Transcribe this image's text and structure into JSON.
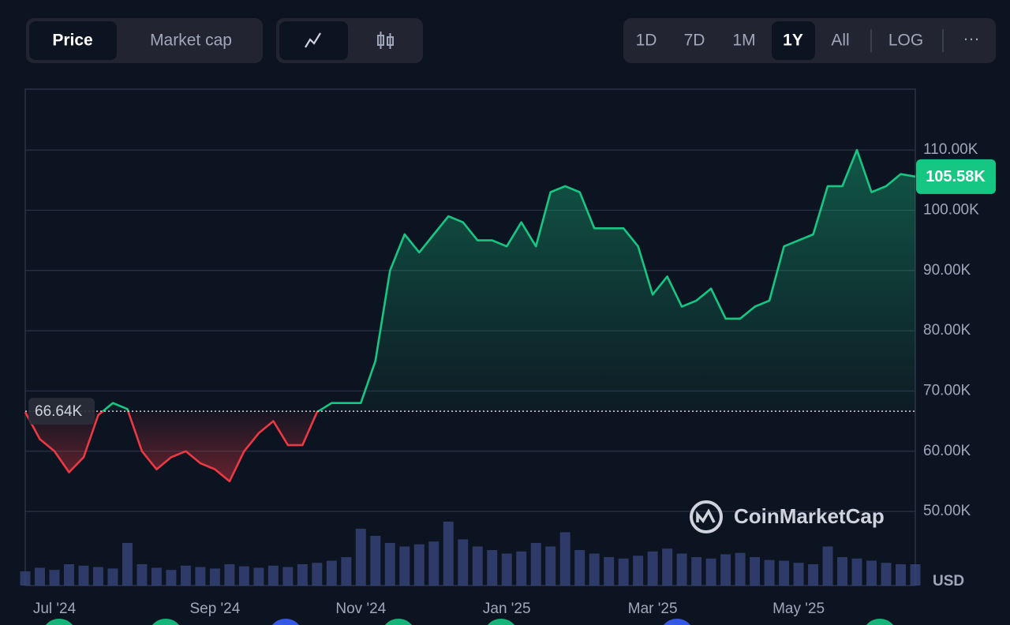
{
  "toolbar": {
    "metric": [
      "Price",
      "Market cap"
    ],
    "ranges": [
      "1D",
      "7D",
      "1M",
      "1Y",
      "All"
    ],
    "scale": "LOG",
    "more": "···",
    "active_range": "1Y",
    "active_metric": "Price"
  },
  "watermark": "CoinMarketCap",
  "chart_data": {
    "type": "line",
    "categories": [
      null,
      null,
      "Jul '24",
      null,
      null,
      null,
      null,
      null,
      null,
      null,
      null,
      null,
      null,
      "Sep '24",
      null,
      null,
      null,
      null,
      null,
      null,
      null,
      null,
      null,
      "Nov '24",
      null,
      null,
      null,
      null,
      null,
      null,
      null,
      null,
      null,
      "Jan '25",
      null,
      null,
      null,
      null,
      null,
      null,
      null,
      null,
      null,
      "Mar '25",
      null,
      null,
      null,
      null,
      null,
      null,
      null,
      null,
      null,
      "May '25",
      null,
      null,
      null,
      null,
      null,
      null,
      null,
      null
    ],
    "series": [
      {
        "name": "Price",
        "color": "#16c784",
        "color_below": "#ea3943",
        "values": [
          66500,
          62000,
          60000,
          56500,
          59000,
          66000,
          68000,
          67000,
          60000,
          57000,
          59000,
          60000,
          58000,
          57000,
          55000,
          60000,
          63000,
          65000,
          61000,
          61000,
          66500,
          68000,
          68000,
          68000,
          75000,
          90000,
          96000,
          93000,
          96000,
          99000,
          98000,
          95000,
          95000,
          94000,
          98000,
          94000,
          103000,
          104000,
          103000,
          97000,
          97000,
          97000,
          94000,
          86000,
          89000,
          84000,
          85000,
          87000,
          82000,
          82000,
          84000,
          85000,
          94000,
          95000,
          96000,
          104000,
          104000,
          110000,
          103000,
          104000,
          106000,
          105580
        ]
      }
    ],
    "volume": {
      "color": "#37457a",
      "ylim": [
        0,
        100
      ],
      "values": [
        20,
        25,
        22,
        30,
        28,
        26,
        24,
        60,
        30,
        25,
        22,
        28,
        26,
        24,
        30,
        27,
        25,
        28,
        26,
        30,
        32,
        35,
        40,
        80,
        70,
        60,
        55,
        58,
        62,
        90,
        65,
        55,
        50,
        45,
        48,
        60,
        55,
        75,
        50,
        45,
        40,
        38,
        42,
        48,
        52,
        45,
        40,
        38,
        44,
        46,
        40,
        36,
        35,
        32,
        30,
        55,
        40,
        38,
        35,
        32,
        30,
        30
      ]
    },
    "reference": {
      "value": 66640,
      "label": "66.64K"
    },
    "current_price": {
      "value": 105580,
      "label": "105.58K"
    },
    "ylim": [
      37700,
      120100
    ],
    "yticks": [
      {
        "value": 50000,
        "label": "50.00K"
      },
      {
        "value": 60000,
        "label": "60.00K"
      },
      {
        "value": 70000,
        "label": "70.00K"
      },
      {
        "value": 80000,
        "label": "80.00K"
      },
      {
        "value": 90000,
        "label": "90.00K"
      },
      {
        "value": 100000,
        "label": "100.00K"
      },
      {
        "value": 110000,
        "label": "110.00K"
      }
    ],
    "y_unit": "USD",
    "grid": true
  }
}
